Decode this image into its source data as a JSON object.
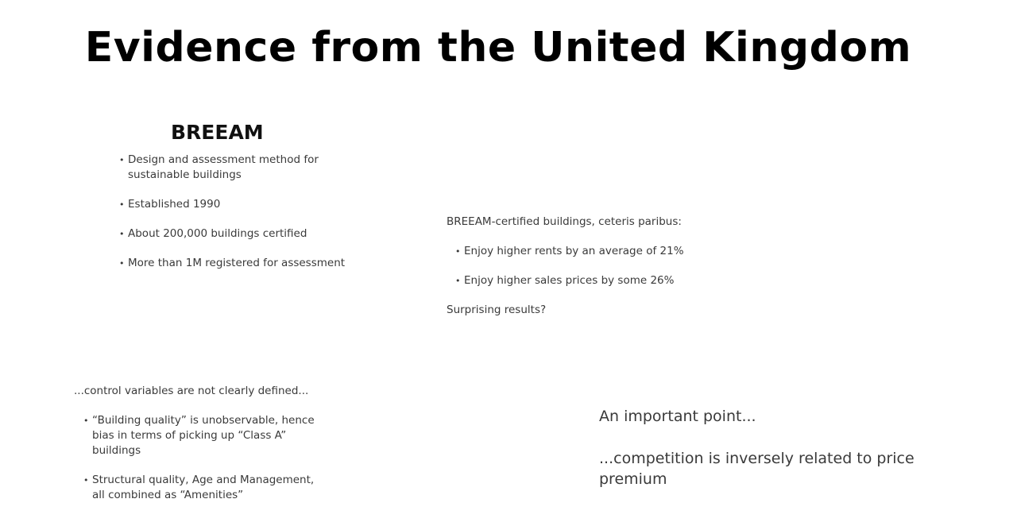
{
  "slide": {
    "title": "Evidence from the United Kingdom"
  },
  "breeam": {
    "heading": "BREEAM",
    "bullets": [
      "Design and assessment method for sustainable buildings",
      "Established 1990",
      "About 200,000 buildings certified",
      "More than 1M registered for assessment"
    ]
  },
  "results": {
    "intro": "BREEAM-certified buildings, ceteris paribus:",
    "bullets": [
      "Enjoy higher rents by an average of 21%",
      "Enjoy higher sales prices by some 26%"
    ],
    "question": "Surprising results?"
  },
  "critique": {
    "intro": "...control variables are not clearly defined...",
    "bullets": [
      "“Building quality” is unobservable, hence bias in terms of picking up “Class A” buildings",
      "Structural quality, Age and Management, all combined as “Amenities”"
    ]
  },
  "point": {
    "heading": "An important point...",
    "text": "...competition is inversely related to price premium"
  }
}
